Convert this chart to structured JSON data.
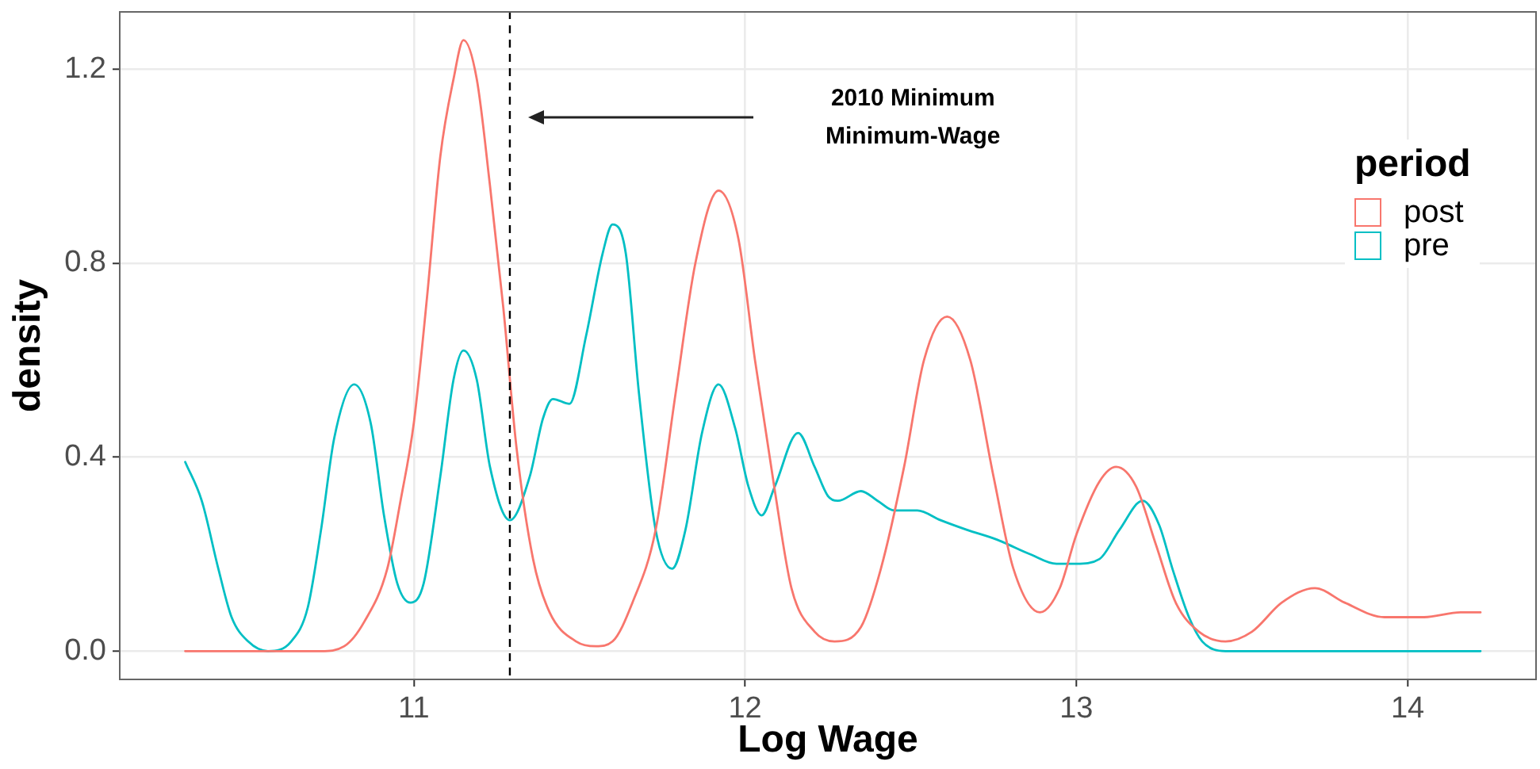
{
  "chart_data": {
    "type": "line",
    "xlabel": "Log Wage",
    "ylabel": "density",
    "legend_title": "period",
    "series": [
      {
        "name": "post",
        "color": "#f8766d",
        "x": [
          10.31,
          10.5,
          10.72,
          10.79,
          10.85,
          10.92,
          10.96,
          11.0,
          11.04,
          11.08,
          11.12,
          11.15,
          11.19,
          11.23,
          11.27,
          11.31,
          11.36,
          11.41,
          11.49,
          11.55,
          11.6,
          11.66,
          11.73,
          11.79,
          11.85,
          11.92,
          11.98,
          12.03,
          12.09,
          12.14,
          12.21,
          12.27,
          12.35,
          12.41,
          12.48,
          12.54,
          12.61,
          12.68,
          12.75,
          12.81,
          12.89,
          12.95,
          13.0,
          13.07,
          13.12,
          13.18,
          13.24,
          13.3,
          13.37,
          13.45,
          13.53,
          13.62,
          13.72,
          13.81,
          13.93,
          14.05,
          14.16,
          14.22
        ],
        "values": [
          0,
          0,
          0,
          0.01,
          0.06,
          0.17,
          0.31,
          0.47,
          0.73,
          1.02,
          1.18,
          1.26,
          1.18,
          0.96,
          0.71,
          0.42,
          0.19,
          0.08,
          0.02,
          0.01,
          0.02,
          0.1,
          0.25,
          0.53,
          0.8,
          0.95,
          0.85,
          0.6,
          0.33,
          0.13,
          0.04,
          0.02,
          0.05,
          0.17,
          0.38,
          0.6,
          0.69,
          0.6,
          0.36,
          0.17,
          0.08,
          0.13,
          0.24,
          0.35,
          0.38,
          0.34,
          0.22,
          0.1,
          0.04,
          0.02,
          0.04,
          0.1,
          0.13,
          0.1,
          0.07,
          0.07,
          0.08,
          0.08
        ]
      },
      {
        "name": "pre",
        "color": "#00bfc4",
        "x": [
          10.31,
          10.36,
          10.41,
          10.45,
          10.5,
          10.56,
          10.63,
          10.68,
          10.72,
          10.76,
          10.82,
          10.87,
          10.91,
          10.95,
          10.99,
          11.03,
          11.08,
          11.12,
          11.15,
          11.19,
          11.23,
          11.29,
          11.35,
          11.39,
          11.42,
          11.47,
          11.52,
          11.57,
          11.6,
          11.64,
          11.68,
          11.73,
          11.78,
          11.82,
          11.87,
          11.92,
          11.97,
          12.01,
          12.05,
          12.09,
          12.16,
          12.21,
          12.25,
          12.28,
          12.35,
          12.4,
          12.45,
          12.52,
          12.59,
          12.67,
          12.76,
          12.86,
          12.94,
          13.0,
          13.07,
          13.13,
          13.2,
          13.25,
          13.29,
          13.34,
          13.38,
          13.45,
          13.6,
          14.22
        ],
        "values": [
          0.39,
          0.31,
          0.17,
          0.07,
          0.02,
          0,
          0.02,
          0.09,
          0.25,
          0.44,
          0.55,
          0.47,
          0.28,
          0.14,
          0.1,
          0.14,
          0.36,
          0.56,
          0.62,
          0.56,
          0.38,
          0.27,
          0.36,
          0.48,
          0.52,
          0.51,
          0.65,
          0.82,
          0.88,
          0.82,
          0.53,
          0.25,
          0.17,
          0.25,
          0.45,
          0.55,
          0.46,
          0.34,
          0.28,
          0.34,
          0.45,
          0.38,
          0.32,
          0.31,
          0.33,
          0.31,
          0.29,
          0.29,
          0.27,
          0.25,
          0.23,
          0.2,
          0.18,
          0.18,
          0.19,
          0.25,
          0.31,
          0.26,
          0.17,
          0.07,
          0.02,
          0,
          0,
          0
        ]
      }
    ],
    "xlim": [
      10.11,
      14.39
    ],
    "ylim": [
      -0.06,
      1.32
    ],
    "xticks": [
      11,
      12,
      13,
      14
    ],
    "yticks": [
      {
        "value": 0,
        "label": "0.0"
      },
      0.4,
      0.8,
      1.2
    ],
    "ref_lines": [
      {
        "axis": "x",
        "value": 11.29,
        "color": "#000000",
        "line_style": "dashed"
      }
    ],
    "annotations": [
      "2010 Minimum\nMinimum-Wage"
    ],
    "grid": true,
    "legend": "top right"
  }
}
